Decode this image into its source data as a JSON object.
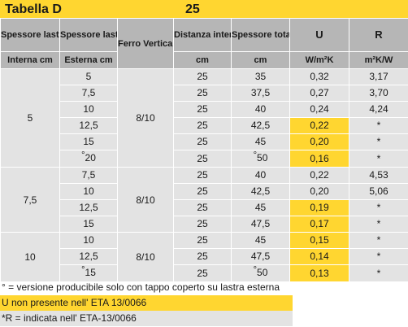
{
  "title": {
    "left": "Tabella D",
    "center": "25"
  },
  "headers": {
    "spessore_eps_int": "Spessore lastra EPS",
    "spessore_eps_est": "Spessore lastra EPS",
    "ferro": "Ferro Verticale Ø",
    "distanza": "Distanza interna fra le lastre",
    "spessore_totale": "Spessore totale",
    "u": "U",
    "r": "R"
  },
  "units": {
    "interna": "Interna cm",
    "esterna": "Esterna cm",
    "distanza": "cm",
    "spessore_totale": "cm",
    "u": "W/m²K",
    "r": "m²K/W"
  },
  "groups": [
    {
      "interna": "5",
      "ferro": "8/10",
      "rows": [
        {
          "esterna": "5",
          "distanza": "25",
          "totale": "35",
          "u": "0,32",
          "r": "3,17",
          "u_hl": false
        },
        {
          "esterna": "7,5",
          "distanza": "25",
          "totale": "37,5",
          "u": "0,27",
          "r": "3,70",
          "u_hl": false
        },
        {
          "esterna": "10",
          "distanza": "25",
          "totale": "40",
          "u": "0,24",
          "r": "4,24",
          "u_hl": false
        },
        {
          "esterna": "12,5",
          "distanza": "25",
          "totale": "42,5",
          "u": "0,22",
          "r": "*",
          "u_hl": true
        },
        {
          "esterna": "15",
          "distanza": "25",
          "totale": "45",
          "u": "0,20",
          "r": "*",
          "u_hl": true
        },
        {
          "esterna": "°20",
          "distanza": "25",
          "totale": "°50",
          "u": "0,16",
          "r": "*",
          "u_hl": true
        }
      ]
    },
    {
      "interna": "7,5",
      "ferro": "8/10",
      "rows": [
        {
          "esterna": "7,5",
          "distanza": "25",
          "totale": "40",
          "u": "0,22",
          "r": "4,53",
          "u_hl": false
        },
        {
          "esterna": "10",
          "distanza": "25",
          "totale": "42,5",
          "u": "0,20",
          "r": "5,06",
          "u_hl": false
        },
        {
          "esterna": "12,5",
          "distanza": "25",
          "totale": "45",
          "u": "0,19",
          "r": "*",
          "u_hl": true
        },
        {
          "esterna": "15",
          "distanza": "25",
          "totale": "47,5",
          "u": "0,17",
          "r": "*",
          "u_hl": true
        }
      ]
    },
    {
      "interna": "10",
      "ferro": "8/10",
      "rows": [
        {
          "esterna": "10",
          "distanza": "25",
          "totale": "45",
          "u": "0,15",
          "r": "*",
          "u_hl": true
        },
        {
          "esterna": "12,5",
          "distanza": "25",
          "totale": "47,5",
          "u": "0,14",
          "r": "*",
          "u_hl": true
        },
        {
          "esterna": "°15",
          "distanza": "25",
          "totale": "°50",
          "u": "0,13",
          "r": "*",
          "u_hl": true
        }
      ]
    }
  ],
  "notes": {
    "degree": "° =  versione producibile solo con tappo coperto su lastra esterna",
    "u_note": "U  non presente nell' ETA 13/0066",
    "r_note": "*R = indicata nell' ETA-13/0066"
  },
  "colors": {
    "yellow": "#ffd630",
    "header_gray": "#b6b6b6",
    "cell_gray": "#e3e3e3"
  }
}
